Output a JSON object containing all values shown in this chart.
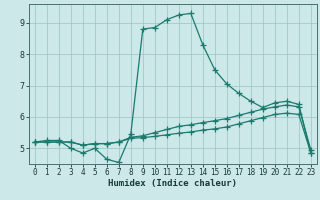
{
  "xlabel": "Humidex (Indice chaleur)",
  "bg_color": "#cce8e8",
  "line_color": "#1a7a6e",
  "grid_color": "#99c4c4",
  "xlim": [
    -0.5,
    23.5
  ],
  "ylim": [
    4.5,
    9.6
  ],
  "yticks": [
    5,
    6,
    7,
    8,
    9
  ],
  "xticks": [
    0,
    1,
    2,
    3,
    4,
    5,
    6,
    7,
    8,
    9,
    10,
    11,
    12,
    13,
    14,
    15,
    16,
    17,
    18,
    19,
    20,
    21,
    22,
    23
  ],
  "series1_x": [
    0,
    1,
    2,
    3,
    4,
    5,
    6,
    7,
    8,
    9,
    10,
    11,
    12,
    13,
    14,
    15,
    16,
    17,
    18,
    19,
    20,
    21,
    22,
    23
  ],
  "series1_y": [
    5.2,
    5.25,
    5.25,
    5.0,
    4.85,
    5.0,
    4.65,
    4.55,
    5.45,
    8.8,
    8.85,
    9.1,
    9.25,
    9.3,
    8.3,
    7.5,
    7.05,
    6.75,
    6.5,
    6.3,
    6.45,
    6.5,
    6.4,
    4.85
  ],
  "series2_x": [
    0,
    1,
    2,
    3,
    4,
    5,
    6,
    7,
    8,
    9,
    10,
    11,
    12,
    13,
    14,
    15,
    16,
    17,
    18,
    19,
    20,
    21,
    22,
    23
  ],
  "series2_y": [
    5.2,
    5.2,
    5.2,
    5.2,
    5.1,
    5.15,
    5.15,
    5.2,
    5.35,
    5.4,
    5.5,
    5.6,
    5.7,
    5.75,
    5.82,
    5.88,
    5.95,
    6.05,
    6.15,
    6.25,
    6.32,
    6.38,
    6.32,
    4.95
  ],
  "series3_x": [
    0,
    1,
    2,
    3,
    4,
    5,
    6,
    7,
    8,
    9,
    10,
    11,
    12,
    13,
    14,
    15,
    16,
    17,
    18,
    19,
    20,
    21,
    22,
    23
  ],
  "series3_y": [
    5.2,
    5.2,
    5.2,
    5.2,
    5.1,
    5.15,
    5.15,
    5.2,
    5.32,
    5.34,
    5.38,
    5.43,
    5.48,
    5.52,
    5.58,
    5.62,
    5.68,
    5.78,
    5.88,
    5.98,
    6.08,
    6.12,
    6.08,
    4.85
  ]
}
